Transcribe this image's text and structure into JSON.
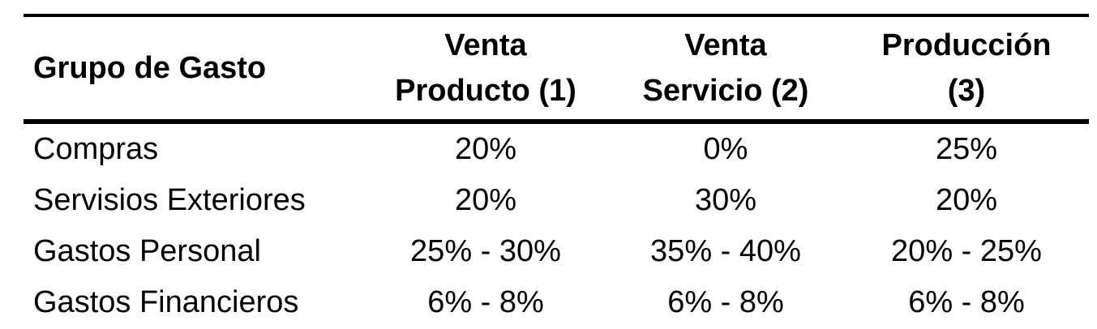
{
  "table": {
    "headers": {
      "group": "Grupo de Gasto",
      "col1_line1": "Venta",
      "col1_line2": "Producto (1)",
      "col2_line1": "Venta",
      "col2_line2": "Servicio (2)",
      "col3_line1": "Producción",
      "col3_line2": "(3)"
    },
    "rows": [
      {
        "group": "Compras",
        "col1": "20%",
        "col2": "0%",
        "col3": "25%"
      },
      {
        "group": "Servisios Exteriores",
        "col1": "20%",
        "col2": "30%",
        "col3": "20%"
      },
      {
        "group": "Gastos Personal",
        "col1": "25% - 30%",
        "col2": "35% - 40%",
        "col3": "20% - 25%"
      },
      {
        "group": "Gastos Financieros",
        "col1": "6% - 8%",
        "col2": "6% - 8%",
        "col3": "6% - 8%"
      }
    ]
  }
}
